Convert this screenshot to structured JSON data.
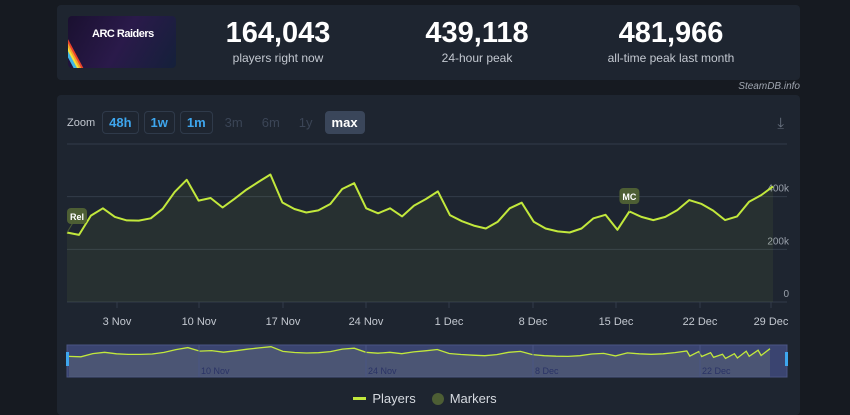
{
  "header": {
    "game_logo_text": "ARC Raiders",
    "stats": [
      {
        "value": "164,043",
        "label": "players right now"
      },
      {
        "value": "439,118",
        "label": "24-hour peak"
      },
      {
        "value": "481,966",
        "label": "all-time peak last month"
      }
    ],
    "credit": "SteamDB.info"
  },
  "toolbar": {
    "zoom_label": "Zoom",
    "buttons": [
      {
        "label": "48h",
        "state": "enabled"
      },
      {
        "label": "1w",
        "state": "enabled"
      },
      {
        "label": "1m",
        "state": "enabled"
      },
      {
        "label": "3m",
        "state": "disabled"
      },
      {
        "label": "6m",
        "state": "disabled"
      },
      {
        "label": "1y",
        "state": "disabled"
      },
      {
        "label": "max",
        "state": "selected"
      }
    ],
    "download_icon": "download-icon"
  },
  "chart_data": {
    "type": "line",
    "x_ticks": [
      "3 Nov",
      "10 Nov",
      "17 Nov",
      "24 Nov",
      "1 Dec",
      "8 Dec",
      "15 Dec",
      "22 Dec",
      "29 Dec"
    ],
    "y_ticks": [
      "0",
      "200k",
      "400k"
    ],
    "ylim": [
      0,
      600000
    ],
    "grid": true,
    "x_range": [
      "30 Oct",
      "29 Dec"
    ],
    "series": [
      {
        "name": "Players",
        "color": "#c2e83c",
        "values": [
          264000,
          255000,
          328000,
          356000,
          323000,
          310000,
          309000,
          318000,
          354000,
          418000,
          464000,
          385000,
          395000,
          359000,
          392000,
          427000,
          456000,
          484000,
          378000,
          353000,
          340000,
          348000,
          372000,
          429000,
          451000,
          356000,
          337000,
          356000,
          325000,
          366000,
          391000,
          420000,
          330000,
          307000,
          290000,
          279000,
          305000,
          356000,
          377000,
          305000,
          279000,
          268000,
          264000,
          279000,
          318000,
          331000,
          274000,
          344000,
          323000,
          311000,
          323000,
          349000,
          387000,
          373000,
          347000,
          311000,
          325000,
          381000,
          405000,
          439000
        ]
      }
    ],
    "markers": [
      {
        "label": "Rel",
        "index": 0
      },
      {
        "label": "MC",
        "index": 47
      }
    ],
    "navigator_ticks": [
      "10 Nov",
      "24 Nov",
      "8 Dec",
      "22 Dec"
    ],
    "legend": [
      "Players",
      "Markers"
    ],
    "legend_placement": "bottom"
  }
}
